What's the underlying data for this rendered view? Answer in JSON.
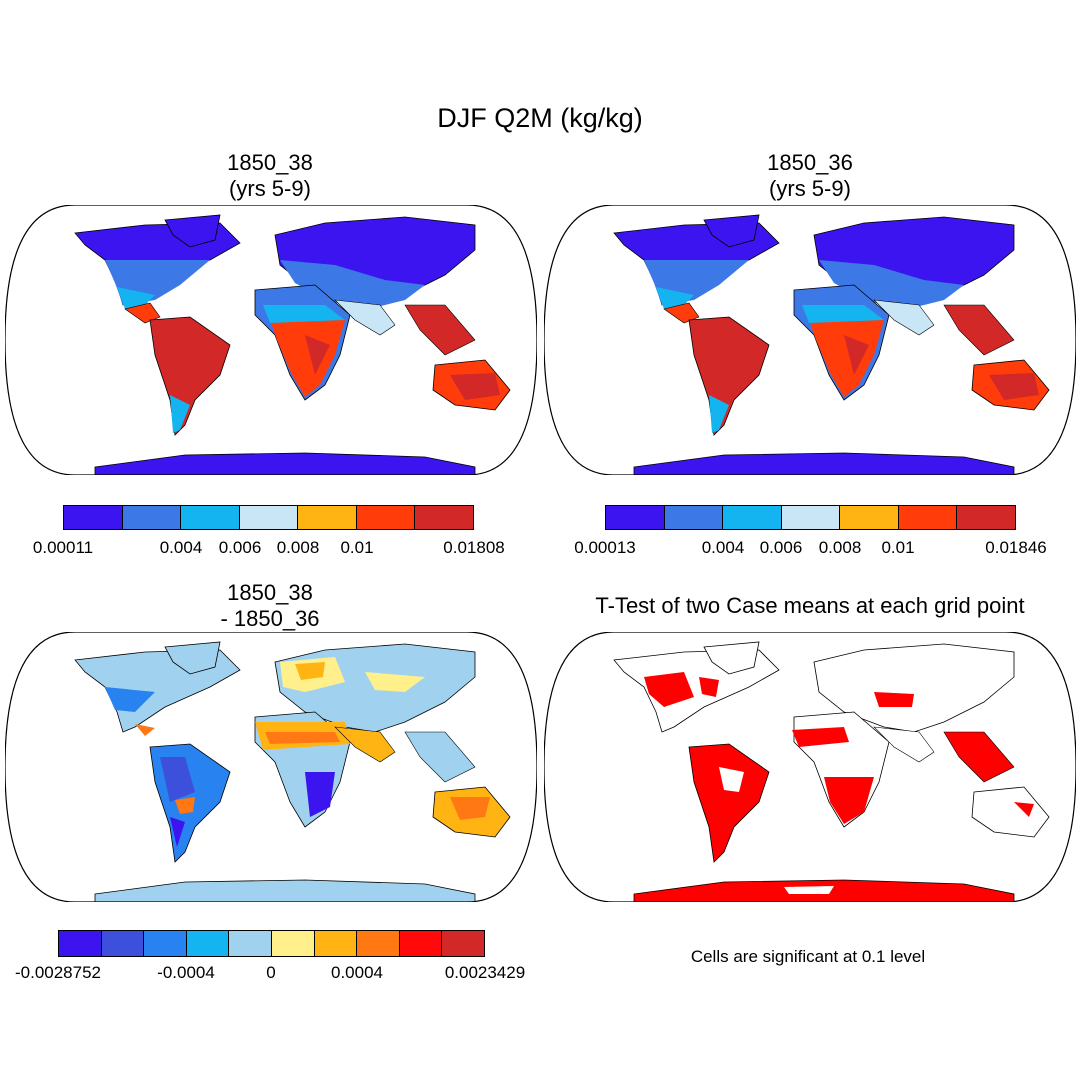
{
  "figure": {
    "title": "DJF Q2M (kg/kg)"
  },
  "panels": [
    {
      "id": "case-38",
      "title_line1": "1850_38",
      "title_line2": "(yrs 5-9)",
      "colorbar": {
        "colors": [
          "#3c14f0",
          "#3c78e6",
          "#14b4f0",
          "#c8e6f5",
          "#ffb414",
          "#ff3c0a",
          "#d22828"
        ],
        "tick_labels": [
          "0.00011",
          "0.004",
          "0.006",
          "0.008",
          "0.01",
          "0.01808"
        ]
      }
    },
    {
      "id": "case-36",
      "title_line1": "1850_36",
      "title_line2": "(yrs 5-9)",
      "colorbar": {
        "colors": [
          "#3c14f0",
          "#3c78e6",
          "#14b4f0",
          "#c8e6f5",
          "#ffb414",
          "#ff3c0a",
          "#d22828"
        ],
        "tick_labels": [
          "0.00013",
          "0.004",
          "0.006",
          "0.008",
          "0.01",
          "0.01846"
        ]
      }
    },
    {
      "id": "difference",
      "title_line1": "1850_38",
      "title_line2": "- 1850_36",
      "colorbar": {
        "colors": [
          "#3c14f0",
          "#3c50dc",
          "#2882f0",
          "#14b4f0",
          "#a0d2f0",
          "#fff08c",
          "#ffb414",
          "#ff7814",
          "#ff0a0a",
          "#d22828"
        ],
        "tick_labels": [
          "-0.0028752",
          "-0.0004",
          "0",
          "0.0004",
          "0.0023429"
        ]
      }
    },
    {
      "id": "ttest",
      "title_line1": "T-Test of two Case means at each grid point",
      "note": "Cells are significant at 0.1 level",
      "significant_color": "#ff0000"
    }
  ]
}
